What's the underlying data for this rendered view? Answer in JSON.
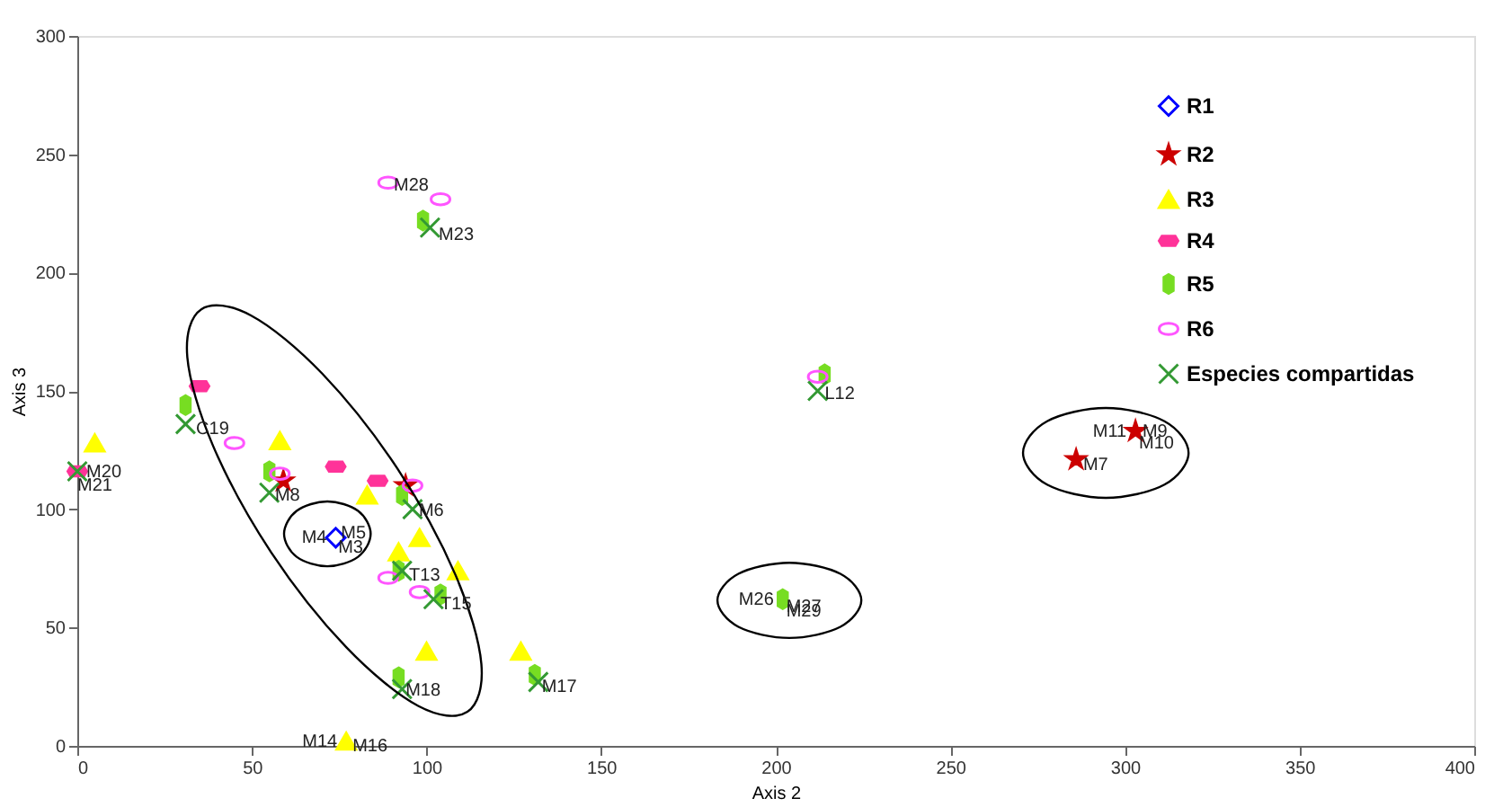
{
  "chart_data": {
    "type": "scatter",
    "xlabel": "Axis 2",
    "ylabel": "Axis 3",
    "xlim": [
      0,
      400
    ],
    "ylim": [
      0,
      300
    ],
    "xticks": [
      0,
      50,
      100,
      150,
      200,
      250,
      300,
      350,
      400
    ],
    "yticks": [
      0,
      50,
      100,
      150,
      200,
      250,
      300
    ],
    "grid": false,
    "legend": "top right",
    "series": [
      {
        "name": "R1",
        "marker": "diamond",
        "color": "#0000ff",
        "x": [
          74
        ],
        "values": [
          88
        ]
      },
      {
        "name": "R2",
        "marker": "star",
        "color": "#cc0000",
        "x": [
          59,
          94,
          286,
          303
        ],
        "values": [
          112,
          110,
          121,
          133
        ]
      },
      {
        "name": "R3",
        "marker": "triangle",
        "color": "#ffff00",
        "x": [
          5,
          58,
          83,
          92,
          98,
          109,
          100,
          127,
          77
        ],
        "values": [
          128,
          129,
          106,
          82,
          88,
          74,
          40,
          40,
          2
        ]
      },
      {
        "name": "R4",
        "color": "#ff3399",
        "x": [
          35,
          74,
          86,
          0
        ],
        "values": [
          152,
          118,
          112,
          116
        ]
      },
      {
        "name": "R5",
        "color": "#77dd22",
        "x": [
          31,
          55,
          93,
          92,
          104,
          92,
          99,
          214,
          202,
          131
        ],
        "values": [
          144,
          116,
          106,
          74,
          64,
          29,
          222,
          157,
          62,
          30
        ]
      },
      {
        "name": "R6",
        "marker": "circle",
        "color": "#ff55ff",
        "x": [
          89,
          104,
          45,
          58,
          96,
          89,
          98,
          212
        ],
        "values": [
          238,
          231,
          128,
          115,
          110,
          71,
          65,
          156
        ]
      },
      {
        "name": "Especies compartidas",
        "marker": "cross",
        "color": "#339933",
        "x": [
          31,
          55,
          96,
          93,
          102,
          93,
          101,
          212,
          132,
          0
        ],
        "values": [
          136,
          107,
          100,
          74,
          62,
          24,
          219,
          150,
          27,
          116
        ]
      }
    ],
    "annotations": [
      {
        "text": "M20",
        "x": 2.6,
        "y": 116
      },
      {
        "text": "M21",
        "x": 0,
        "y": 110
      },
      {
        "text": "C19",
        "x": 34,
        "y": 134
      },
      {
        "text": "M8",
        "x": 56.6,
        "y": 106
      },
      {
        "text": "M4",
        "x": 74,
        "y": 88
      },
      {
        "text": "M5",
        "x": 75.5,
        "y": 90
      },
      {
        "text": "M3",
        "x": 74.7,
        "y": 84
      },
      {
        "text": "M6",
        "x": 97.8,
        "y": 99.5
      },
      {
        "text": "T13",
        "x": 95,
        "y": 72
      },
      {
        "text": "T15",
        "x": 104,
        "y": 60
      },
      {
        "text": "M18",
        "x": 94,
        "y": 23.5
      },
      {
        "text": "M14",
        "x": 77,
        "y": 2
      },
      {
        "text": "M16",
        "x": 78.8,
        "y": 0
      },
      {
        "text": "M28",
        "x": 90.6,
        "y": 237
      },
      {
        "text": "M23",
        "x": 103.5,
        "y": 216
      },
      {
        "text": "M17",
        "x": 133,
        "y": 25
      },
      {
        "text": "L12",
        "x": 214,
        "y": 149
      },
      {
        "text": "M26",
        "x": 202,
        "y": 62
      },
      {
        "text": "M27",
        "x": 203,
        "y": 59
      },
      {
        "text": "M29",
        "x": 203,
        "y": 57
      },
      {
        "text": "M11",
        "x": 303,
        "y": 133
      },
      {
        "text": "M9",
        "x": 305,
        "y": 133
      },
      {
        "text": "M10",
        "x": 304,
        "y": 128
      },
      {
        "text": "M7",
        "x": 288,
        "y": 119
      }
    ]
  }
}
